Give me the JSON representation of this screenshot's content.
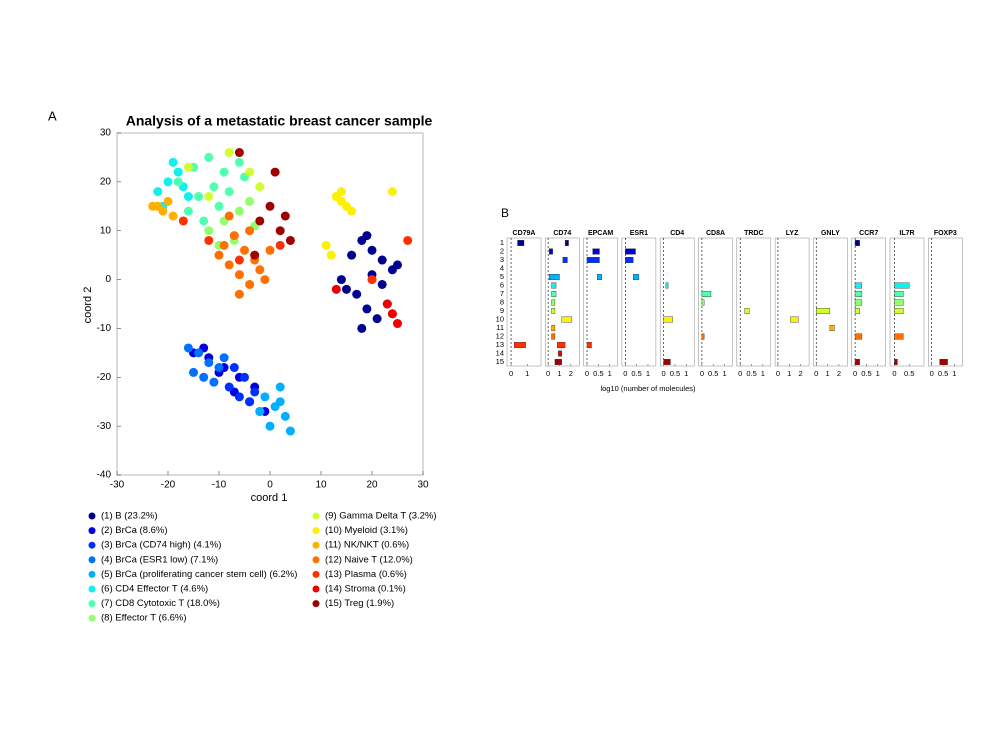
{
  "chart_data": [
    {
      "type": "scatter",
      "panel_label": "A",
      "title": "Analysis of a metastatic breast cancer sample",
      "xlabel": "coord 1",
      "ylabel": "coord 2",
      "xlim": [
        -30,
        30
      ],
      "xticks": [
        -30,
        -20,
        -10,
        0,
        10,
        20,
        30
      ],
      "ylim": [
        -40,
        30
      ],
      "yticks": [
        -40,
        -30,
        -20,
        -10,
        0,
        10,
        20,
        30
      ],
      "series": [
        {
          "name": "(1) B (23.2%)",
          "color": "#00008F",
          "x": [
            14,
            16,
            18,
            20,
            22,
            24,
            17,
            19,
            21,
            23,
            15,
            20,
            18,
            22,
            25,
            19
          ],
          "y": [
            0,
            5,
            8,
            6,
            4,
            2,
            -3,
            -6,
            -8,
            -5,
            -2,
            1,
            -10,
            -1,
            3,
            9
          ]
        },
        {
          "name": "(2) BrCa (8.6%)",
          "color": "#0000DF",
          "x": [
            -15,
            -12,
            -9,
            -6,
            -3,
            -10,
            -7,
            -4,
            -1,
            -13
          ],
          "y": [
            -15,
            -16,
            -18,
            -20,
            -22,
            -19,
            -23,
            -25,
            -27,
            -14
          ]
        },
        {
          "name": "(3) BrCa (CD74 high) (4.1%)",
          "color": "#0030FF",
          "x": [
            -8,
            -6,
            -4,
            -2,
            -5,
            -3,
            -7
          ],
          "y": [
            -22,
            -24,
            -25,
            -27,
            -20,
            -23,
            -18
          ]
        },
        {
          "name": "(4) BrCa (ESR1 low) (7.1%)",
          "color": "#0070FF",
          "x": [
            -16,
            -14,
            -12,
            -10,
            -15,
            -13,
            -11,
            -9
          ],
          "y": [
            -14,
            -15,
            -17,
            -18,
            -19,
            -20,
            -21,
            -16
          ]
        },
        {
          "name": "(5) BrCa (proliferating cancer stem cell) (6.2%)",
          "color": "#00B0FF",
          "x": [
            -1,
            1,
            3,
            2,
            0,
            4,
            -2,
            2
          ],
          "y": [
            -24,
            -26,
            -28,
            -22,
            -30,
            -31,
            -27,
            -25
          ]
        },
        {
          "name": "(6) CD4 Effector T (4.6%)",
          "color": "#10F0EF",
          "x": [
            -22,
            -20,
            -18,
            -16,
            -19,
            -21,
            -17
          ],
          "y": [
            18,
            20,
            22,
            17,
            24,
            15,
            19
          ]
        },
        {
          "name": "(7) CD8 Cytotoxic T (18.0%)",
          "color": "#50FFAF",
          "x": [
            -18,
            -15,
            -12,
            -9,
            -6,
            -14,
            -11,
            -8,
            -5,
            -16,
            -10,
            -13
          ],
          "y": [
            20,
            23,
            25,
            22,
            24,
            17,
            19,
            18,
            21,
            14,
            15,
            12
          ]
        },
        {
          "name": "(8) Effector T (6.6%)",
          "color": "#90FF6F",
          "x": [
            -12,
            -9,
            -6,
            -3,
            -10,
            -7,
            -4
          ],
          "y": [
            10,
            12,
            14,
            11,
            7,
            8,
            16
          ]
        },
        {
          "name": "(9) Gamma Delta T (3.2%)",
          "color": "#CFFF30",
          "x": [
            -16,
            -8,
            -4,
            -2,
            -12
          ],
          "y": [
            23,
            26,
            22,
            19,
            17
          ]
        },
        {
          "name": "(10) Myeloid (3.1%)",
          "color": "#FFEF00",
          "x": [
            13,
            14,
            15,
            16,
            11,
            12,
            24,
            14
          ],
          "y": [
            17,
            16,
            15,
            14,
            7,
            5,
            18,
            18
          ]
        },
        {
          "name": "(11) NK/NKT (0.6%)",
          "color": "#FFAF00",
          "x": [
            -22,
            -21,
            -20,
            -19,
            -23
          ],
          "y": [
            15,
            14,
            16,
            13,
            15
          ]
        },
        {
          "name": "(12) Naive T (12.0%)",
          "color": "#FF7000",
          "x": [
            -10,
            -8,
            -6,
            -4,
            -2,
            -9,
            -7,
            -5,
            -3,
            -1,
            -6,
            -4,
            -8,
            0
          ],
          "y": [
            5,
            3,
            1,
            -1,
            2,
            7,
            9,
            6,
            4,
            0,
            -3,
            10,
            13,
            6
          ]
        },
        {
          "name": "(13) Plasma (0.6%)",
          "color": "#FF3000",
          "x": [
            -17,
            -12,
            -6,
            2,
            27,
            20,
            24
          ],
          "y": [
            12,
            8,
            4,
            7,
            8,
            0,
            -7
          ]
        },
        {
          "name": "(14) Stroma (0.1%)",
          "color": "#EF0000",
          "x": [
            24,
            25,
            13,
            23
          ],
          "y": [
            -7,
            -9,
            -2,
            -5
          ]
        },
        {
          "name": "(15) Treg (1.9%)",
          "color": "#9F0000",
          "x": [
            -2,
            0,
            2,
            3,
            4,
            -6,
            -3,
            1
          ],
          "y": [
            12,
            15,
            10,
            13,
            8,
            26,
            5,
            22
          ]
        }
      ]
    },
    {
      "type": "box",
      "panel_label": "B",
      "xlabel": "log10 (number of molecules)",
      "categories": [
        "1",
        "2",
        "3",
        "4",
        "5",
        "6",
        "7",
        "8",
        "9",
        "10",
        "11",
        "12",
        "13",
        "14",
        "15"
      ],
      "panels": [
        {
          "title": "CD79A",
          "xlim": [
            -0.25,
            1.85
          ],
          "xticks": [
            0,
            1
          ],
          "q1": [
            0.4,
            null,
            null,
            null,
            null,
            null,
            null,
            null,
            null,
            null,
            null,
            null,
            0.2,
            null,
            null
          ],
          "q3": [
            0.8,
            null,
            null,
            null,
            null,
            null,
            null,
            null,
            null,
            null,
            null,
            null,
            0.9,
            null,
            null
          ]
        },
        {
          "title": "CD74",
          "xlim": [
            -0.25,
            2.75
          ],
          "xticks": [
            0,
            1,
            2
          ],
          "q1": [
            1.5,
            0.1,
            1.3,
            null,
            0.1,
            0.3,
            0.3,
            0.3,
            0.3,
            1.2,
            0.3,
            0.3,
            0.8,
            0.9,
            0.6
          ],
          "q3": [
            1.8,
            0.4,
            1.7,
            null,
            1.0,
            0.7,
            0.7,
            0.6,
            0.6,
            2.1,
            0.6,
            0.6,
            1.5,
            1.2,
            1.2
          ]
        },
        {
          "title": "EPCAM",
          "xlim": [
            -0.15,
            1.35
          ],
          "xticks": [
            0,
            0.5,
            1
          ],
          "q1": [
            null,
            0.25,
            0,
            null,
            0.45,
            null,
            null,
            null,
            null,
            null,
            null,
            null,
            0,
            null,
            null
          ],
          "q3": [
            null,
            0.55,
            0.55,
            null,
            0.65,
            null,
            null,
            null,
            null,
            null,
            null,
            null,
            0.2,
            null,
            null
          ]
        },
        {
          "title": "ESR1",
          "xlim": [
            -0.15,
            1.35
          ],
          "xticks": [
            0,
            0.5,
            1
          ],
          "q1": [
            null,
            0,
            0,
            null,
            0.35,
            null,
            null,
            null,
            null,
            null,
            null,
            null,
            null,
            null,
            null
          ],
          "q3": [
            null,
            0.45,
            0.35,
            null,
            0.6,
            null,
            null,
            null,
            null,
            null,
            null,
            null,
            null,
            null,
            null
          ]
        },
        {
          "title": "CD4",
          "xlim": [
            -0.15,
            1.35
          ],
          "xticks": [
            0,
            0.5,
            1
          ],
          "q1": [
            null,
            null,
            null,
            null,
            null,
            0.1,
            null,
            null,
            null,
            0,
            null,
            null,
            null,
            null,
            0
          ],
          "q3": [
            null,
            null,
            null,
            null,
            null,
            0.2,
            null,
            null,
            null,
            0.4,
            null,
            null,
            null,
            null,
            0.3
          ]
        },
        {
          "title": "CD8A",
          "xlim": [
            -0.15,
            1.35
          ],
          "xticks": [
            0,
            0.5,
            1
          ],
          "q1": [
            null,
            null,
            null,
            null,
            null,
            null,
            0,
            0,
            null,
            null,
            null,
            0,
            null,
            null,
            null
          ],
          "q3": [
            null,
            null,
            null,
            null,
            null,
            null,
            0.4,
            0.1,
            null,
            null,
            null,
            0.1,
            null,
            null,
            null
          ]
        },
        {
          "title": "TRDC",
          "xlim": [
            -0.15,
            1.35
          ],
          "xticks": [
            0,
            0.5,
            1
          ],
          "q1": [
            null,
            null,
            null,
            null,
            null,
            null,
            null,
            null,
            0.2,
            null,
            null,
            null,
            null,
            null,
            null
          ],
          "q3": [
            null,
            null,
            null,
            null,
            null,
            null,
            null,
            null,
            0.4,
            null,
            null,
            null,
            null,
            null,
            null
          ]
        },
        {
          "title": "LYZ",
          "xlim": [
            -0.25,
            2.75
          ],
          "xticks": [
            0,
            1,
            2
          ],
          "q1": [
            null,
            null,
            null,
            null,
            null,
            null,
            null,
            null,
            null,
            1.1,
            null,
            null,
            null,
            null,
            null
          ],
          "q3": [
            null,
            null,
            null,
            null,
            null,
            null,
            null,
            null,
            null,
            1.8,
            null,
            null,
            null,
            null,
            null
          ]
        },
        {
          "title": "GNLY",
          "xlim": [
            -0.25,
            2.75
          ],
          "xticks": [
            0,
            1,
            2
          ],
          "q1": [
            null,
            null,
            null,
            null,
            null,
            null,
            null,
            null,
            0,
            null,
            1.2,
            null,
            null,
            null,
            null
          ],
          "q3": [
            null,
            null,
            null,
            null,
            null,
            null,
            null,
            null,
            1.2,
            null,
            1.6,
            null,
            null,
            null,
            null
          ]
        },
        {
          "title": "CCR7",
          "xlim": [
            -0.15,
            1.35
          ],
          "xticks": [
            0,
            0.5,
            1
          ],
          "q1": [
            0,
            null,
            null,
            null,
            null,
            0,
            0,
            0,
            0,
            null,
            null,
            0,
            null,
            null,
            0
          ],
          "q3": [
            0.2,
            null,
            null,
            null,
            null,
            0.3,
            0.3,
            0.3,
            0.2,
            null,
            null,
            0.3,
            null,
            null,
            0.2
          ]
        },
        {
          "title": "IL7R",
          "xlim": [
            -0.15,
            1.0
          ],
          "xticks": [
            0,
            0.5
          ],
          "q1": [
            null,
            null,
            null,
            null,
            null,
            0,
            0,
            0,
            0,
            null,
            null,
            0,
            null,
            null,
            0
          ],
          "q3": [
            null,
            null,
            null,
            null,
            null,
            0.5,
            0.3,
            0.3,
            0.3,
            null,
            null,
            0.3,
            null,
            null,
            0.1
          ]
        },
        {
          "title": "FOXP3",
          "xlim": [
            -0.15,
            1.35
          ],
          "xticks": [
            0,
            0.5,
            1
          ],
          "q1": [
            null,
            null,
            null,
            null,
            null,
            null,
            null,
            null,
            null,
            null,
            null,
            null,
            null,
            null,
            0.35
          ],
          "q3": [
            null,
            null,
            null,
            null,
            null,
            null,
            null,
            null,
            null,
            null,
            null,
            null,
            null,
            null,
            0.7
          ]
        }
      ]
    }
  ]
}
